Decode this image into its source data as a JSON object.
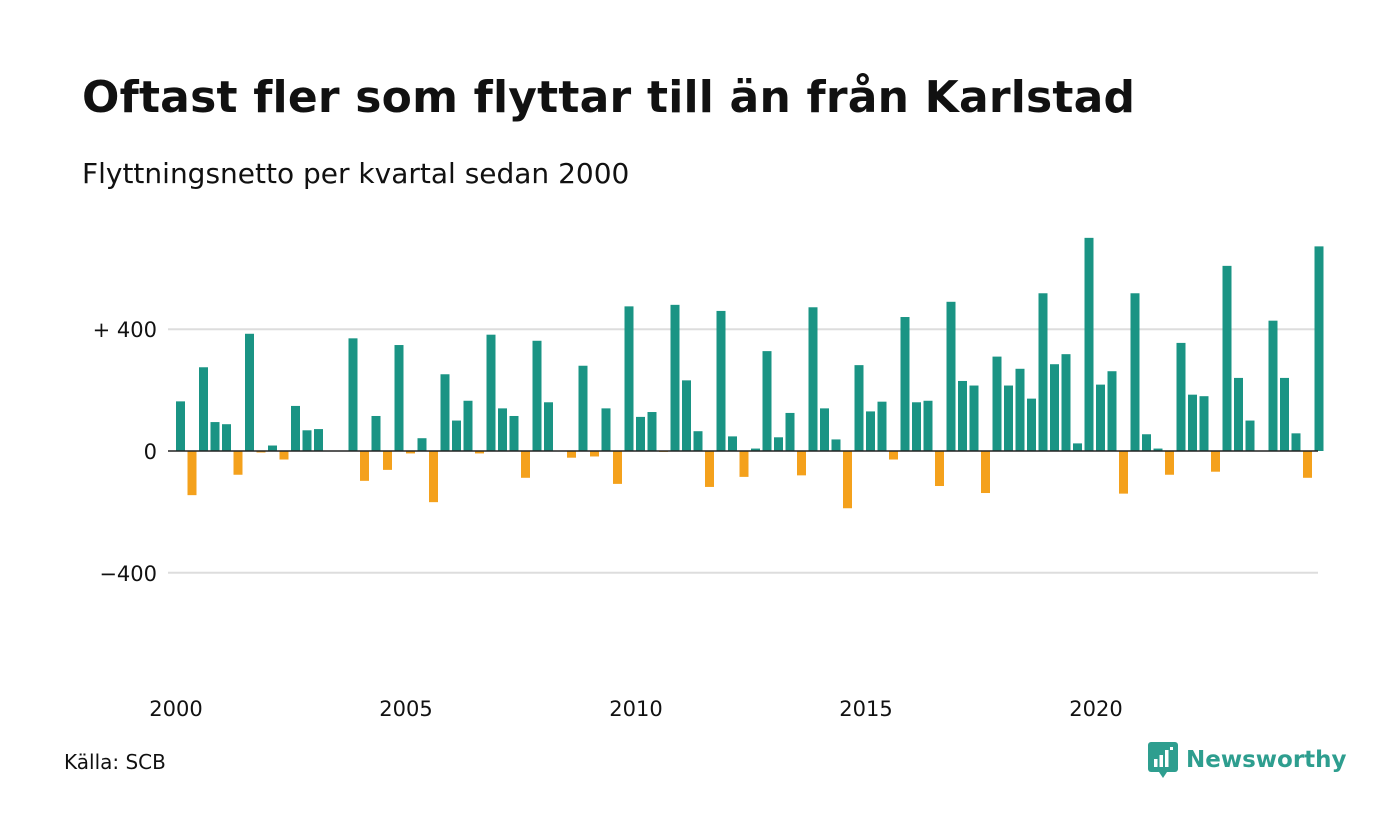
{
  "title": "Oftast fler som flyttar till än från Karlstad",
  "subtitle": "Flyttningsnetto per kvartal sedan 2000",
  "source": "Källa: SCB",
  "brand": {
    "name": "Newsworthy",
    "icon": "newsworthy-logo-icon"
  },
  "colors": {
    "positive": "#1a9484",
    "negative": "#f4a11c",
    "grid": "#dddddd",
    "zero": "#222222"
  },
  "chart_data": {
    "type": "bar",
    "title": "Oftast fler som flyttar till än från Karlstad",
    "subtitle": "Flyttningsnetto per kvartal sedan 2000",
    "xlabel": "",
    "ylabel": "",
    "ylim": [
      -680,
      700
    ],
    "grid": true,
    "legend": "none",
    "y_ticks": [
      {
        "value": 400,
        "label": "+ 400"
      },
      {
        "value": 0,
        "label": "0"
      },
      {
        "value": -400,
        "label": "−400"
      }
    ],
    "x_ticks": [
      {
        "year": 2000,
        "label": "2000"
      },
      {
        "year": 2005,
        "label": "2005"
      },
      {
        "year": 2010,
        "label": "2010"
      },
      {
        "year": 2015,
        "label": "2015"
      },
      {
        "year": 2020,
        "label": "2020"
      }
    ],
    "start_year": 2000,
    "values": [
      163,
      -145,
      275,
      95,
      88,
      -78,
      385,
      -5,
      18,
      -28,
      148,
      68,
      72,
      0,
      0,
      370,
      -98,
      115,
      -62,
      348,
      -8,
      42,
      -168,
      252,
      100,
      165,
      -8,
      382,
      140,
      115,
      -88,
      362,
      160,
      0,
      -22,
      280,
      -18,
      140,
      -108,
      475,
      112,
      128,
      -3,
      480,
      232,
      65,
      -118,
      460,
      48,
      -85,
      8,
      328,
      45,
      125,
      -80,
      472,
      140,
      38,
      -188,
      282,
      130,
      162,
      -28,
      440,
      160,
      165,
      -115,
      490,
      230,
      215,
      -138,
      310,
      215,
      270,
      172,
      518,
      285,
      318,
      25,
      700,
      218,
      262,
      -140,
      518,
      55,
      8,
      -78,
      355,
      185,
      180,
      -68,
      608,
      240,
      100,
      0,
      428,
      240,
      58,
      -88,
      672
    ]
  }
}
